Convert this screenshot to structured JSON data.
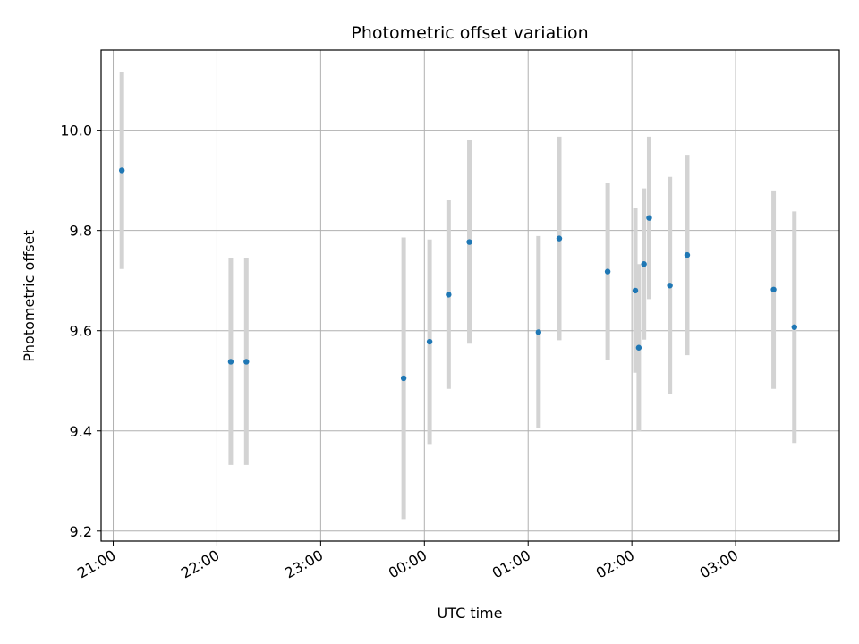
{
  "chart_data": {
    "type": "scatter",
    "title": "Photometric offset variation",
    "xlabel": "UTC time",
    "ylabel": "Photometric offset",
    "grid": true,
    "x_ticks": [
      "21:00",
      "22:00",
      "23:00",
      "00:00",
      "01:00",
      "02:00",
      "03:00"
    ],
    "y_ticks": [
      "9.2",
      "9.4",
      "9.6",
      "9.8",
      "10.0"
    ],
    "ylim": [
      9.18,
      10.16
    ],
    "xlim": [
      "20:53",
      "04:00"
    ],
    "marker_color": "#1f77b4",
    "errorbar_color": "#d3d3d3",
    "points": [
      {
        "t": "21:05",
        "y": 9.92,
        "err": 0.197
      },
      {
        "t": "22:08",
        "y": 9.538,
        "err": 0.206
      },
      {
        "t": "22:17",
        "y": 9.538,
        "err": 0.206
      },
      {
        "t": "23:48",
        "y": 9.505,
        "err": 0.281
      },
      {
        "t": "00:03",
        "y": 9.578,
        "err": 0.204
      },
      {
        "t": "00:14",
        "y": 9.672,
        "err": 0.188
      },
      {
        "t": "00:26",
        "y": 9.777,
        "err": 0.203
      },
      {
        "t": "01:06",
        "y": 9.597,
        "err": 0.192
      },
      {
        "t": "01:18",
        "y": 9.784,
        "err": 0.203
      },
      {
        "t": "01:46",
        "y": 9.718,
        "err": 0.176
      },
      {
        "t": "02:02",
        "y": 9.68,
        "err": 0.164
      },
      {
        "t": "02:04",
        "y": 9.566,
        "err": 0.167
      },
      {
        "t": "02:07",
        "y": 9.733,
        "err": 0.151
      },
      {
        "t": "02:10",
        "y": 9.825,
        "err": 0.162
      },
      {
        "t": "02:22",
        "y": 9.69,
        "err": 0.217
      },
      {
        "t": "02:32",
        "y": 9.751,
        "err": 0.2
      },
      {
        "t": "03:22",
        "y": 9.682,
        "err": 0.198
      },
      {
        "t": "03:34",
        "y": 9.607,
        "err": 0.231
      }
    ]
  }
}
